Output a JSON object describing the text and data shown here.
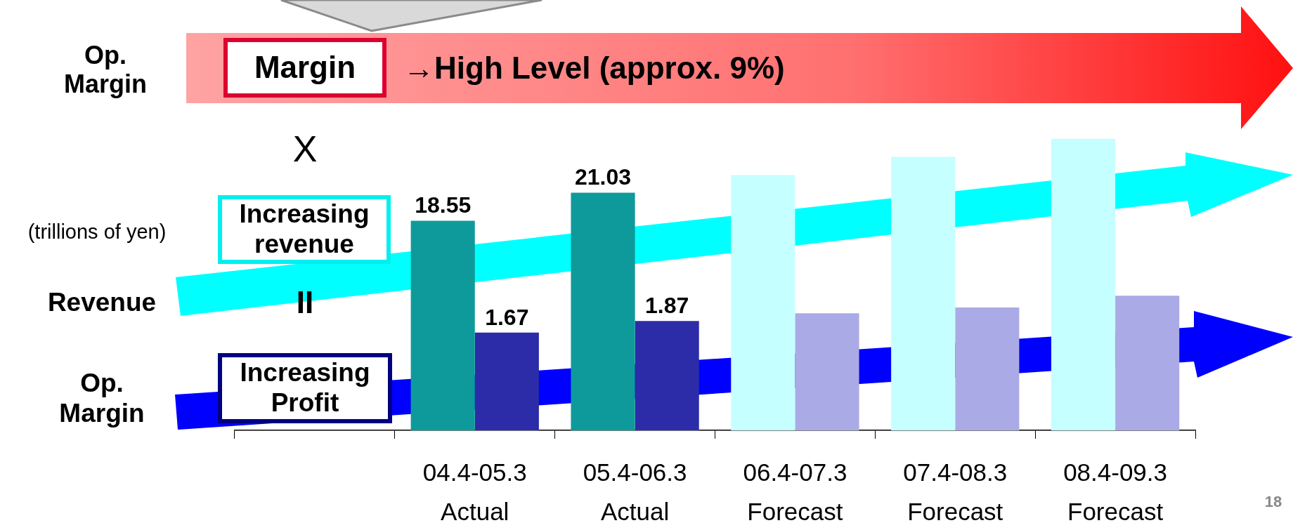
{
  "chart_data": {
    "type": "bar",
    "categories": [
      null,
      "04.4-05.3\nActual",
      "05.4-06.3\nActual",
      "06.4-07.3\nForecast",
      "07.4-08.3\nForecast",
      "08.4-09.3\nForecast"
    ],
    "series": [
      {
        "colors": [
          "#0e9a9a",
          "#0e9a9a",
          "#0e9a9a",
          "#c6ffff",
          "#c6ffff",
          "#c6ffff"
        ],
        "values": [
          null,
          18.55,
          21.03,
          22.6,
          24.2,
          25.8
        ],
        "value_labels": [
          null,
          "18.55",
          "21.03",
          null,
          null,
          null
        ]
      },
      {
        "axis": "y2",
        "colors": [
          "#2c2ca8",
          "#2c2ca8",
          "#2c2ca8",
          "#aaaae6",
          "#aaaae6",
          "#aaaae6"
        ],
        "values": [
          null,
          1.67,
          1.87,
          2.0,
          2.1,
          2.3
        ],
        "value_labels": [
          null,
          "1.67",
          "1.87",
          null,
          null,
          null
        ]
      }
    ],
    "ylabel": "(trillions of yen)",
    "tick_labels": "x",
    "grid": false,
    "legend": false,
    "annotations": [
      "Op.\nMargin",
      "Margin",
      "→High Level (approx. 9%)",
      "X",
      "Increasing\nrevenue",
      "Revenue",
      "II",
      "Op.\nMargin",
      "Increasing\nProfit",
      "18"
    ]
  }
}
